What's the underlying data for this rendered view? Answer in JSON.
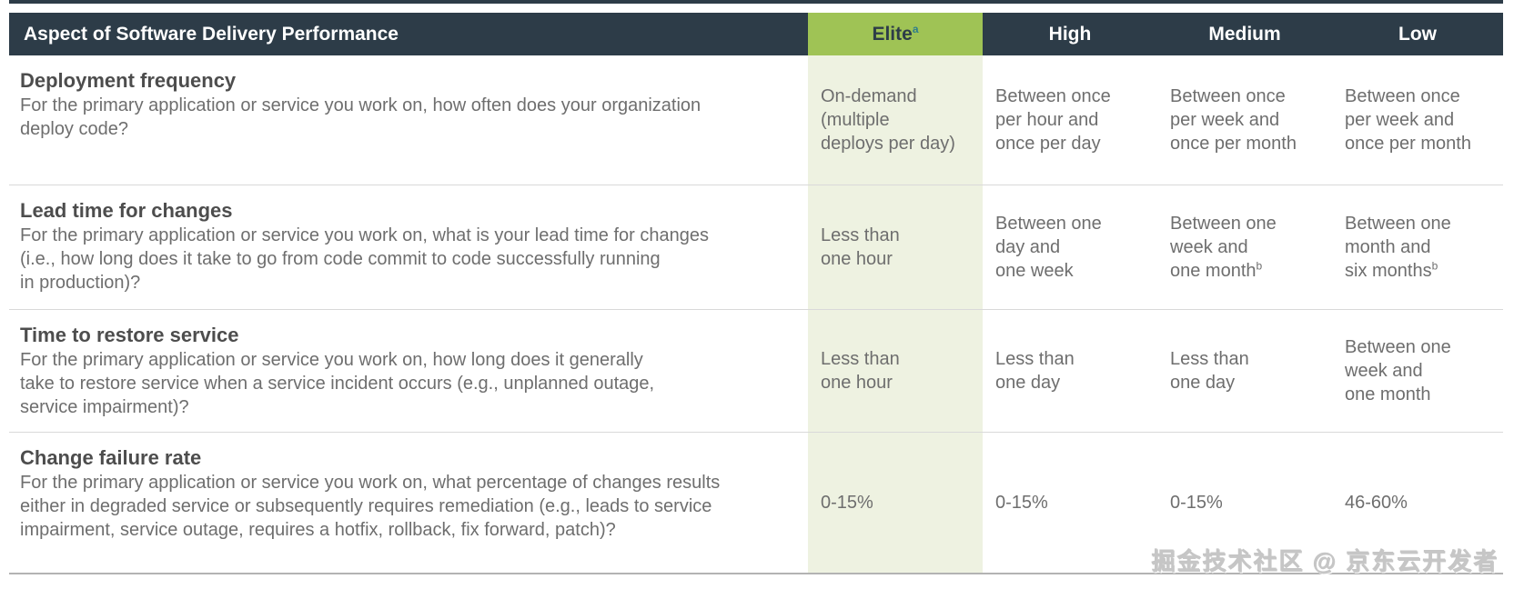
{
  "colors": {
    "navy": "#2d3c48",
    "elite_green": "#9fc355",
    "elite_tint": "#eef2e1",
    "title_text": "#4d4d4d",
    "body_text": "#6e6e6e",
    "header_text": "#ffffff",
    "separator": "#d9d9d9",
    "bottom_border": "#b3b3b3",
    "footnote_teal": "#2e7d8c",
    "watermark_gray": "#c6c6c6"
  },
  "table": {
    "header": {
      "aspect_label": "Aspect of Software Delivery Performance",
      "elite": {
        "label": "Elite",
        "sup": "a"
      },
      "high": {
        "label": "High"
      },
      "medium": {
        "label": "Medium"
      },
      "low": {
        "label": "Low"
      }
    },
    "rows": [
      {
        "title": "Deployment frequency",
        "description": "For the primary application or service you work on, how often does your organization\ndeploy code?",
        "elite": {
          "text": "On-demand\n(multiple\ndeploys per day)"
        },
        "high": {
          "text": "Between once\nper hour and\nonce per day"
        },
        "medium": {
          "text": "Between once\nper week and\nonce per month"
        },
        "low": {
          "text": "Between once\nper week and\nonce per month"
        }
      },
      {
        "title": "Lead time for changes",
        "description": "For the primary application or service you work on, what is your lead time for changes\n(i.e., how long does it take to go from code commit to code successfully running\nin production)?",
        "elite": {
          "text": "Less than\none hour"
        },
        "high": {
          "text": "Between one\nday and\none week"
        },
        "medium": {
          "text": "Between one\nweek and\none month",
          "sup": "b"
        },
        "low": {
          "text": "Between one\nmonth and\nsix months",
          "sup": "b"
        }
      },
      {
        "title": "Time to restore service",
        "description": "For the primary application or service you work on, how long does it generally\ntake to restore service when a service incident occurs (e.g., unplanned outage,\nservice impairment)?",
        "elite": {
          "text": "Less than\none hour"
        },
        "high": {
          "text": "Less than\none day"
        },
        "medium": {
          "text": "Less than\none day"
        },
        "low": {
          "text": "Between one\nweek and\none month"
        }
      },
      {
        "title": "Change failure rate",
        "description": "For the primary application or service you work on, what percentage of changes results\neither in degraded service or subsequently requires remediation (e.g., leads to service\nimpairment, service outage, requires a hotfix, rollback, fix forward, patch)?",
        "elite": {
          "text": "0-15%"
        },
        "high": {
          "text": "0-15%"
        },
        "medium": {
          "text": "0-15%"
        },
        "low": {
          "text": "46-60%"
        }
      }
    ]
  },
  "watermark": {
    "text": "掘金技术社区 @ 京东云开发者"
  }
}
